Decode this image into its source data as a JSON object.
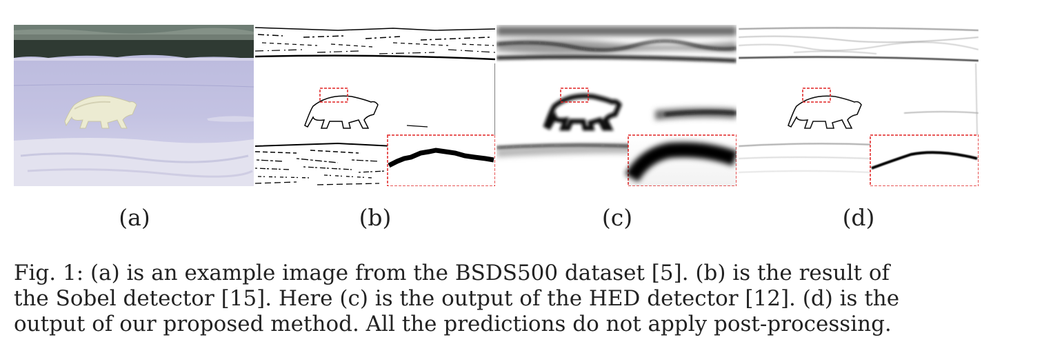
{
  "figure": {
    "subfigure_labels": [
      "(a)",
      "(b)",
      "(c)",
      "(d)"
    ],
    "caption_lines": [
      "Fig. 1: (a) is an example image from the BSDS500 dataset [5]. (b) is the result of",
      "the Sobel detector [15]. Here (c) is the output of the HED detector [12]. (d) is the",
      "output of our proposed method. All the predictions do not apply post-processing."
    ],
    "highlight_color": "#e02020"
  }
}
